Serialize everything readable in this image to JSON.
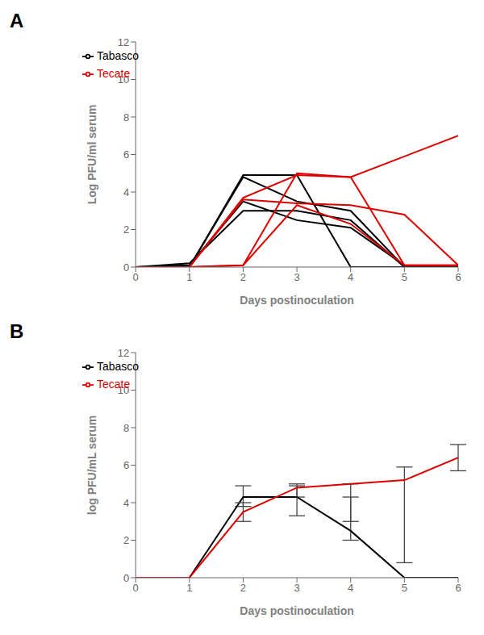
{
  "chart_data": [
    {
      "type": "line",
      "title": "A",
      "xlabel": "Days postinoculation",
      "ylabel": "Log PFU/ml serum",
      "x": [
        0,
        1,
        2,
        3,
        4,
        5,
        6
      ],
      "series": [
        {
          "name": "Tabasco",
          "color": "#000000",
          "values": [
            0,
            0,
            4.9,
            4.9,
            0,
            0,
            0
          ]
        },
        {
          "name": "Tabasco",
          "color": "#000000",
          "values": [
            0,
            0,
            4.8,
            3.5,
            3.0,
            0,
            0
          ]
        },
        {
          "name": "Tabasco",
          "color": "#000000",
          "values": [
            0,
            0.2,
            3.0,
            3.0,
            2.5,
            0,
            0
          ]
        },
        {
          "name": "Tabasco",
          "color": "#000000",
          "values": [
            0,
            0.1,
            3.5,
            2.5,
            2.1,
            0.1,
            0
          ]
        },
        {
          "name": "Tecate",
          "color": "#dd0000",
          "values": [
            0,
            0,
            3.7,
            4.9,
            4.8,
            5.9,
            7.0
          ]
        },
        {
          "name": "Tecate",
          "color": "#dd0000",
          "values": [
            0,
            0,
            3.6,
            3.4,
            3.3,
            2.8,
            0.1
          ]
        },
        {
          "name": "Tecate",
          "color": "#dd0000",
          "values": [
            0,
            0,
            0.1,
            5.0,
            4.8,
            0.1,
            0.1
          ]
        },
        {
          "name": "Tecate",
          "color": "#dd0000",
          "values": [
            0,
            0,
            0.1,
            3.3,
            2.3,
            0.1,
            0.1
          ]
        }
      ],
      "xlim": [
        0,
        6
      ],
      "xticks": [
        0,
        1,
        2,
        3,
        4,
        5,
        6
      ],
      "ylim": [
        0,
        12
      ],
      "yticks": [
        0,
        2,
        4,
        6,
        8,
        10,
        12
      ],
      "grid": false,
      "legend": "upper left"
    },
    {
      "type": "line",
      "title": "B",
      "xlabel": "Days postinoculation",
      "ylabel": "log PFU/mL serum",
      "x": [
        0,
        1,
        2,
        3,
        4,
        5,
        6
      ],
      "series": [
        {
          "name": "Tabasco",
          "color": "#000000",
          "values": [
            0,
            0,
            4.3,
            4.3,
            2.5,
            0,
            0
          ],
          "error_low": [
            0,
            0,
            0.5,
            0.0,
            0.5,
            0,
            0
          ],
          "error_high": [
            0,
            0,
            0.6,
            0.6,
            1.8,
            0,
            0
          ]
        },
        {
          "name": "Tecate",
          "color": "#dd0000",
          "values": [
            0,
            0,
            3.5,
            4.8,
            5.0,
            5.2,
            6.4
          ],
          "error_low": [
            0,
            0,
            0.5,
            1.5,
            2.0,
            4.4,
            0.7
          ],
          "error_high": [
            0,
            0,
            0.5,
            0.2,
            0.0,
            0.7,
            0.7
          ]
        }
      ],
      "xlim": [
        0,
        6
      ],
      "xticks": [
        0,
        1,
        2,
        3,
        4,
        5,
        6
      ],
      "ylim": [
        0,
        12
      ],
      "yticks": [
        0,
        2,
        4,
        6,
        8,
        10,
        12
      ],
      "grid": false,
      "legend": "upper left"
    }
  ]
}
